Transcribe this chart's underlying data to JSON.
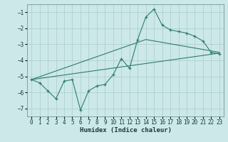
{
  "xlabel": "Humidex (Indice chaleur)",
  "bg_color": "#cce8e8",
  "grid_color": "#aacccc",
  "line_color": "#2e7d6e",
  "xlim": [
    -0.5,
    23.5
  ],
  "ylim": [
    -7.5,
    -0.5
  ],
  "yticks": [
    -7,
    -6,
    -5,
    -4,
    -3,
    -2,
    -1
  ],
  "xticks": [
    0,
    1,
    2,
    3,
    4,
    5,
    6,
    7,
    8,
    9,
    10,
    11,
    12,
    13,
    14,
    15,
    16,
    17,
    18,
    19,
    20,
    21,
    22,
    23
  ],
  "main_x": [
    0,
    1,
    2,
    3,
    4,
    5,
    6,
    7,
    8,
    9,
    10,
    11,
    12,
    13,
    14,
    15,
    16,
    17,
    18,
    19,
    20,
    21,
    22,
    23
  ],
  "main_y": [
    -5.2,
    -5.4,
    -5.9,
    -6.4,
    -5.3,
    -5.2,
    -7.1,
    -5.9,
    -5.6,
    -5.5,
    -4.9,
    -3.9,
    -4.5,
    -2.7,
    -1.3,
    -0.8,
    -1.8,
    -2.1,
    -2.2,
    -2.3,
    -2.5,
    -2.8,
    -3.5,
    -3.6
  ],
  "trend1_x": [
    0,
    23
  ],
  "trend1_y": [
    -5.2,
    -3.55
  ],
  "trend2_x": [
    0,
    14,
    23
  ],
  "trend2_y": [
    -5.2,
    -2.7,
    -3.5
  ]
}
